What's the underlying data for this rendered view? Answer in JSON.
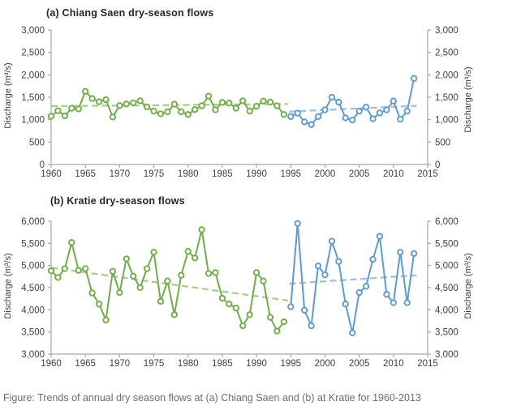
{
  "caption": "Figure: Trends of annual dry season flows at (a) Chiang Saen and (b) at Kratie for 1960-2013",
  "colors": {
    "green_series": "#6FAE46",
    "green_trend": "#A8D08D",
    "blue_series": "#5B9BD5",
    "blue_trend": "#9CC3E5",
    "axis_line": "#A6A6A6",
    "tick_text": "#404040",
    "title_text": "#262626",
    "caption_text": "#6d6d6d",
    "background": "#ffffff"
  },
  "chart_data": [
    {
      "id": "chiang-saen",
      "type": "line",
      "title": "(a) Chiang Saen dry-season flows",
      "ylabel_left": "Discharge (m³/s)",
      "ylabel_right": "Discharge (m³/s)",
      "ylim": [
        0,
        3000
      ],
      "xlim": [
        1960,
        2015
      ],
      "ytick_values": [
        0,
        500,
        1000,
        1500,
        2000,
        2500,
        3000
      ],
      "ytick_labels": [
        "0",
        "500",
        "1,000",
        "1,500",
        "2,000",
        "2,500",
        "3,000"
      ],
      "xtick_values": [
        1960,
        1965,
        1970,
        1975,
        1980,
        1985,
        1990,
        1995,
        2000,
        2005,
        2010,
        2015
      ],
      "xtick_labels": [
        "1960",
        "1965",
        "1970",
        "1975",
        "1980",
        "1985",
        "1990",
        "1995",
        "2000",
        "2005",
        "2010",
        "2015"
      ],
      "grid": false,
      "legend": "none",
      "series": [
        {
          "name": "flow-1960-1994",
          "color_key": "green_series",
          "marker": true,
          "x_start": 1960,
          "x_step": 1,
          "values": [
            1075,
            1200,
            1085,
            1255,
            1240,
            1630,
            1470,
            1400,
            1445,
            1060,
            1315,
            1350,
            1375,
            1420,
            1285,
            1190,
            1130,
            1175,
            1345,
            1175,
            1115,
            1225,
            1310,
            1525,
            1220,
            1385,
            1370,
            1255,
            1420,
            1190,
            1300,
            1415,
            1390,
            1310,
            1115
          ]
        },
        {
          "name": "flow-1995-2013",
          "color_key": "blue_series",
          "marker": true,
          "x_start": 1995,
          "x_step": 1,
          "values": [
            1070,
            1145,
            950,
            890,
            1070,
            1220,
            1500,
            1390,
            1040,
            990,
            1190,
            1280,
            1020,
            1150,
            1220,
            1415,
            1010,
            1190,
            1920
          ]
        },
        {
          "name": "trend-1960-1994",
          "color_key": "green_trend",
          "dashed": true,
          "x": [
            1960,
            1994.6
          ],
          "values": [
            1300,
            1350
          ]
        },
        {
          "name": "trend-1995-2013",
          "color_key": "blue_trend",
          "dashed": true,
          "x": [
            1994.8,
            2013.4
          ],
          "values": [
            1180,
            1310
          ]
        }
      ]
    },
    {
      "id": "kratie",
      "type": "line",
      "title": "(b) Kratie dry-season flows",
      "ylabel_left": "Discharge (m³/s)",
      "ylabel_right": "Discharge (m³/s)",
      "ylim": [
        3000,
        6000
      ],
      "xlim": [
        1960,
        2015
      ],
      "ytick_values": [
        3000,
        3500,
        4000,
        4500,
        5000,
        5500,
        6000
      ],
      "ytick_labels": [
        "3,000",
        "3,500",
        "4,000",
        "4,500",
        "5,000",
        "5,500",
        "6,000"
      ],
      "xtick_values": [
        1960,
        1965,
        1970,
        1975,
        1980,
        1985,
        1990,
        1995,
        2000,
        2005,
        2010,
        2015
      ],
      "xtick_labels": [
        "1960",
        "1965",
        "1970",
        "1975",
        "1980",
        "1985",
        "1990",
        "1995",
        "2000",
        "2005",
        "2010",
        "2015"
      ],
      "grid": false,
      "legend": "none",
      "series": [
        {
          "name": "flow-1960-1994",
          "color_key": "green_series",
          "marker": true,
          "x_start": 1960,
          "x_step": 1,
          "values": [
            4880,
            4730,
            4930,
            5520,
            4890,
            4930,
            4380,
            4130,
            3770,
            4870,
            4390,
            5150,
            4760,
            4500,
            4930,
            5300,
            4190,
            4650,
            3890,
            4780,
            5320,
            5170,
            5810,
            4820,
            4840,
            4260,
            4130,
            4040,
            3640,
            3890,
            4840,
            4650,
            3830,
            3520,
            3730
          ]
        },
        {
          "name": "flow-1995-2013",
          "color_key": "blue_series",
          "marker": true,
          "x_start": 1995,
          "x_step": 1,
          "values": [
            4070,
            5950,
            3990,
            3640,
            4990,
            4790,
            5550,
            5090,
            4130,
            3480,
            4390,
            4530,
            5140,
            5660,
            4350,
            4160,
            5300,
            4160,
            5270
          ]
        },
        {
          "name": "trend-1960-1994",
          "color_key": "green_trend",
          "dashed": true,
          "x": [
            1960,
            1994.6
          ],
          "values": [
            4950,
            4210
          ]
        },
        {
          "name": "trend-1995-2013",
          "color_key": "blue_trend",
          "dashed": true,
          "x": [
            1994.8,
            2013.4
          ],
          "values": [
            4590,
            4780
          ]
        }
      ]
    }
  ]
}
